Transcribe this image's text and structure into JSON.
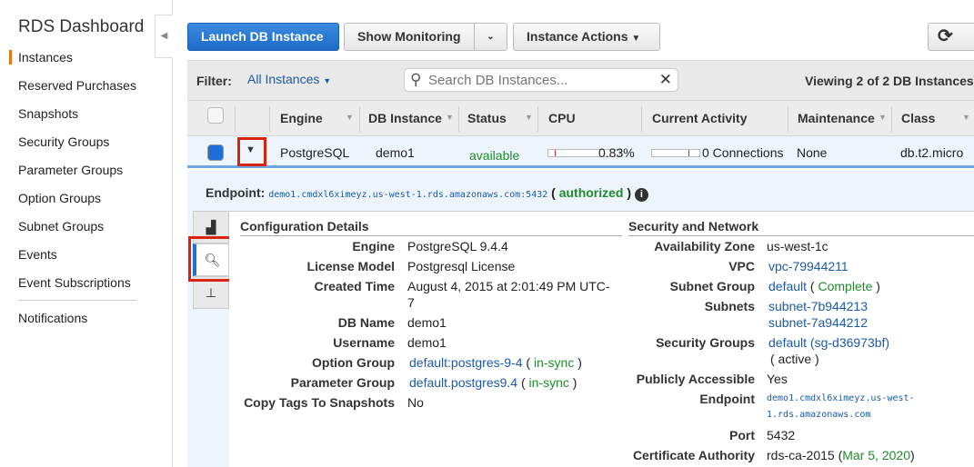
{
  "sidebar": {
    "title": "RDS Dashboard",
    "items": [
      {
        "label": "Instances",
        "active": true
      },
      {
        "label": "Reserved Purchases"
      },
      {
        "label": "Snapshots"
      },
      {
        "label": "Security Groups"
      },
      {
        "label": "Parameter Groups"
      },
      {
        "label": "Option Groups"
      },
      {
        "label": "Subnet Groups"
      },
      {
        "label": "Events"
      },
      {
        "label": "Event Subscriptions"
      },
      {
        "label": "Notifications"
      }
    ]
  },
  "toolbar": {
    "launch": "Launch DB Instance",
    "monitoring": "Show Monitoring",
    "actions": "Instance Actions",
    "refresh_icon": "refresh-icon"
  },
  "filter": {
    "label": "Filter:",
    "value": "All Instances",
    "search_placeholder": "Search DB Instances...",
    "viewing": "Viewing 2 of 2 DB Instances"
  },
  "table": {
    "columns": [
      "Engine",
      "DB Instance",
      "Status",
      "CPU",
      "Current Activity",
      "Maintenance",
      "Class"
    ],
    "row": {
      "engine": "PostgreSQL",
      "db_instance": "demo1",
      "status": "available",
      "cpu": "0.83%",
      "cpu_fraction": 0.0083,
      "activity": "0 Connections",
      "maintenance": "None",
      "class": "db.t2.micro"
    }
  },
  "detail": {
    "endpoint_label": "Endpoint:",
    "endpoint": "demo1.cmdxl6ximeyz.us-west-1.rds.amazonaws.com:5432",
    "authorized": "authorized",
    "config": {
      "title": "Configuration Details",
      "rows": [
        {
          "label": "Engine",
          "value": "PostgreSQL 9.4.4"
        },
        {
          "label": "License Model",
          "value": "Postgresql License"
        },
        {
          "label": "Created Time",
          "value": "August 4, 2015 at 2:01:49 PM UTC-",
          "value2": "7"
        },
        {
          "label": "DB Name",
          "value": "demo1"
        },
        {
          "label": "Username",
          "value": "demo1"
        },
        {
          "label": "Option Group",
          "link": "default:postgres-9-4",
          "status": "in-sync"
        },
        {
          "label": "Parameter Group",
          "link": "default.postgres9.4",
          "status": "in-sync"
        },
        {
          "label": "Copy Tags To Snapshots",
          "value": "No"
        }
      ]
    },
    "security": {
      "title": "Security and Network",
      "az_label": "Availability Zone",
      "az": "us-west-1c",
      "vpc_label": "VPC",
      "vpc": "vpc-79944211",
      "subnet_group_label": "Subnet Group",
      "subnet_group": "default",
      "subnet_group_status": "Complete",
      "subnets_label": "Subnets",
      "subnets": [
        "subnet-7b944213",
        "subnet-7a944212"
      ],
      "sg_label": "Security Groups",
      "sg": "default (sg-d36973bf)",
      "sg_status": "( active )",
      "public_label": "Publicly Accessible",
      "public": "Yes",
      "endpoint_label": "Endpoint",
      "endpoint1": "demo1.cmdxl6ximeyz.us-west-",
      "endpoint2": "1.rds.amazonaws.com",
      "port_label": "Port",
      "port": "5432",
      "ca_label": "Certificate Authority",
      "ca": "rds-ca-2015",
      "ca_date": "Mar 5, 2020"
    }
  }
}
